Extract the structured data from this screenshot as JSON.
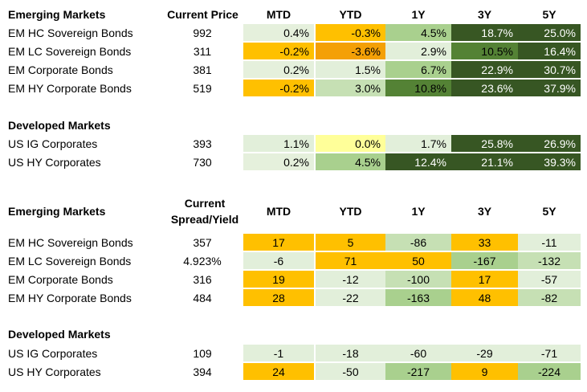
{
  "table1": {
    "title": "Emerging Markets",
    "headers": [
      "Current Price",
      "MTD",
      "YTD",
      "1Y",
      "3Y",
      "5Y"
    ],
    "rows": [
      {
        "name": "EM HC Sovereign Bonds",
        "price": "992",
        "values": [
          "0.4%",
          "-0.3%",
          "4.5%",
          "18.7%",
          "25.0%"
        ],
        "colors": [
          "#e5f0dc",
          "#ffc000",
          "#a9d08e",
          "#385723",
          "#375623"
        ]
      },
      {
        "name": "EM LC Sovereign Bonds",
        "price": "311",
        "values": [
          "-0.2%",
          "-3.6%",
          "2.9%",
          "10.5%",
          "16.4%"
        ],
        "colors": [
          "#ffc000",
          "#f4a006",
          "#e2efda",
          "#548235",
          "#375623"
        ]
      },
      {
        "name": "EM Corporate Bonds",
        "price": "381",
        "values": [
          "0.2%",
          "1.5%",
          "6.7%",
          "22.9%",
          "30.7%"
        ],
        "colors": [
          "#e5f0dc",
          "#e2efda",
          "#a9d08e",
          "#375623",
          "#375623"
        ]
      },
      {
        "name": "EM HY Corporate Bonds",
        "price": "519",
        "values": [
          "-0.2%",
          "3.0%",
          "10.8%",
          "23.6%",
          "37.9%"
        ],
        "colors": [
          "#ffc000",
          "#c6e0b4",
          "#548235",
          "#375623",
          "#375623"
        ]
      }
    ]
  },
  "table1b": {
    "title": "Developed Markets",
    "rows": [
      {
        "name": "US IG Corporates",
        "price": "393",
        "values": [
          "1.1%",
          "0.0%",
          "1.7%",
          "25.8%",
          "26.9%"
        ],
        "colors": [
          "#e2efda",
          "#ffff99",
          "#e2efda",
          "#375623",
          "#375623"
        ]
      },
      {
        "name": "US HY Corporates",
        "price": "730",
        "values": [
          "0.2%",
          "4.5%",
          "12.4%",
          "21.1%",
          "39.3%"
        ],
        "colors": [
          "#e5f0dc",
          "#a9d08e",
          "#375623",
          "#375623",
          "#375623"
        ]
      }
    ]
  },
  "table2": {
    "title": "Emerging Markets",
    "headers": [
      "Current Spread/Yield",
      "MTD",
      "YTD",
      "1Y",
      "3Y",
      "5Y"
    ],
    "header_line1": "Current",
    "header_line2": "Spread/Yield",
    "rows": [
      {
        "name": "EM HC Sovereign Bonds",
        "price": "357",
        "values": [
          "17",
          "5",
          "-86",
          "33",
          "-11"
        ],
        "colors": [
          "#ffc000",
          "#ffc000",
          "#c6e0b4",
          "#ffc000",
          "#e2efda"
        ]
      },
      {
        "name": "EM LC Sovereign Bonds",
        "price": "4.923%",
        "values": [
          "-6",
          "71",
          "50",
          "-167",
          "-132"
        ],
        "colors": [
          "#e2efda",
          "#ffc000",
          "#ffc000",
          "#a9d08e",
          "#c6e0b4"
        ]
      },
      {
        "name": "EM Corporate Bonds",
        "price": "316",
        "values": [
          "19",
          "-12",
          "-100",
          "17",
          "-57"
        ],
        "colors": [
          "#ffc000",
          "#e2efda",
          "#c6e0b4",
          "#ffc000",
          "#e2efda"
        ]
      },
      {
        "name": "EM HY Corporate Bonds",
        "price": "484",
        "values": [
          "28",
          "-22",
          "-163",
          "48",
          "-82"
        ],
        "colors": [
          "#ffc000",
          "#e2efda",
          "#a9d08e",
          "#ffc000",
          "#c6e0b4"
        ]
      }
    ]
  },
  "table2b": {
    "title": "Developed Markets",
    "rows": [
      {
        "name": "US IG Corporates",
        "price": "109",
        "values": [
          "-1",
          "-18",
          "-60",
          "-29",
          "-71"
        ],
        "colors": [
          "#e2efda",
          "#e2efda",
          "#e2efda",
          "#e2efda",
          "#e2efda"
        ]
      },
      {
        "name": "US HY Corporates",
        "price": "394",
        "values": [
          "24",
          "-50",
          "-217",
          "9",
          "-224"
        ],
        "colors": [
          "#ffc000",
          "#e2efda",
          "#a9d08e",
          "#ffc000",
          "#a9d08e"
        ]
      }
    ]
  }
}
